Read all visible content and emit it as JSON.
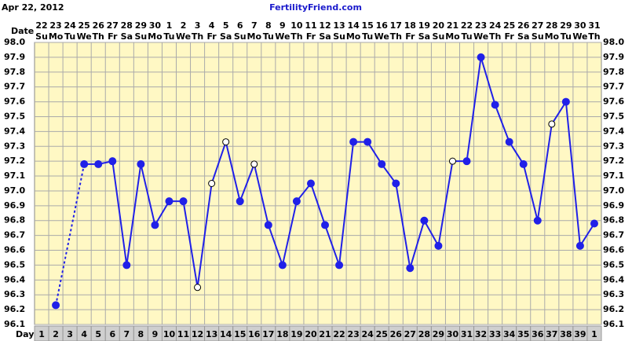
{
  "chart_data": {
    "type": "line",
    "title": "FertilityFriend.com",
    "date": "Apr 22, 2012",
    "row_labels": {
      "date": "Date",
      "day": "Day"
    },
    "categories": [
      "22",
      "23",
      "24",
      "25",
      "26",
      "27",
      "28",
      "29",
      "30",
      "1",
      "2",
      "3",
      "4",
      "5",
      "6",
      "7",
      "8",
      "9",
      "10",
      "11",
      "12",
      "13",
      "14",
      "15",
      "16",
      "17",
      "18",
      "19",
      "20",
      "21",
      "22",
      "23",
      "24",
      "25",
      "26",
      "27",
      "28",
      "29",
      "30",
      "31"
    ],
    "weekdays": [
      "Su",
      "Mo",
      "Tu",
      "We",
      "Th",
      "Fr",
      "Sa",
      "Su",
      "Mo",
      "Tu",
      "We",
      "Th",
      "Fr",
      "Sa",
      "Su",
      "Mo",
      "Tu",
      "We",
      "Th",
      "Fr",
      "Sa",
      "Su",
      "Mo",
      "Tu",
      "We",
      "Th",
      "Fr",
      "Sa",
      "Su",
      "Mo",
      "Tu",
      "We",
      "Th",
      "Fr",
      "Sa",
      "Su",
      "Mo",
      "Tu",
      "We",
      "Th"
    ],
    "days": [
      1,
      2,
      3,
      4,
      5,
      6,
      7,
      8,
      9,
      10,
      11,
      12,
      13,
      14,
      15,
      16,
      17,
      18,
      19,
      20,
      21,
      22,
      23,
      24,
      25,
      26,
      27,
      28,
      29,
      30,
      31,
      32,
      33,
      34,
      35,
      36,
      37,
      38,
      39,
      1
    ],
    "series": [
      {
        "color": "#2020e8",
        "values": [
          null,
          96.23,
          null,
          97.18,
          97.18,
          97.2,
          96.5,
          97.18,
          96.77,
          96.93,
          96.93,
          96.35,
          97.05,
          97.33,
          96.93,
          97.18,
          96.77,
          96.5,
          96.93,
          97.05,
          96.77,
          96.5,
          97.33,
          97.33,
          97.18,
          97.05,
          96.48,
          96.8,
          96.63,
          97.2,
          97.2,
          97.9,
          97.58,
          97.33,
          97.18,
          96.8,
          97.45,
          97.6,
          96.63,
          96.78
        ],
        "markers": [
          "filled",
          "filled",
          "filled",
          "filled",
          "filled",
          "filled",
          "filled",
          "filled",
          "filled",
          "filled",
          "filled",
          "open",
          "open",
          "open",
          "filled",
          "open",
          "filled",
          "filled",
          "filled",
          "filled",
          "filled",
          "filled",
          "filled",
          "filled",
          "filled",
          "filled",
          "filled",
          "filled",
          "filled",
          "open",
          "filled",
          "filled",
          "filled",
          "filled",
          "filled",
          "filled",
          "open",
          "filled",
          "filled",
          "filled"
        ]
      }
    ],
    "ylim": [
      96.1,
      98.0
    ],
    "yticks": [
      96.1,
      96.2,
      96.3,
      96.4,
      96.5,
      96.6,
      96.7,
      96.8,
      96.9,
      {
        "value": 97.0,
        "label": "97.0"
      },
      97.1,
      97.2,
      97.3,
      97.4,
      97.5,
      97.6,
      97.7,
      97.8,
      97.9,
      {
        "value": 98.0,
        "label": "98.0"
      }
    ],
    "grid": true
  }
}
